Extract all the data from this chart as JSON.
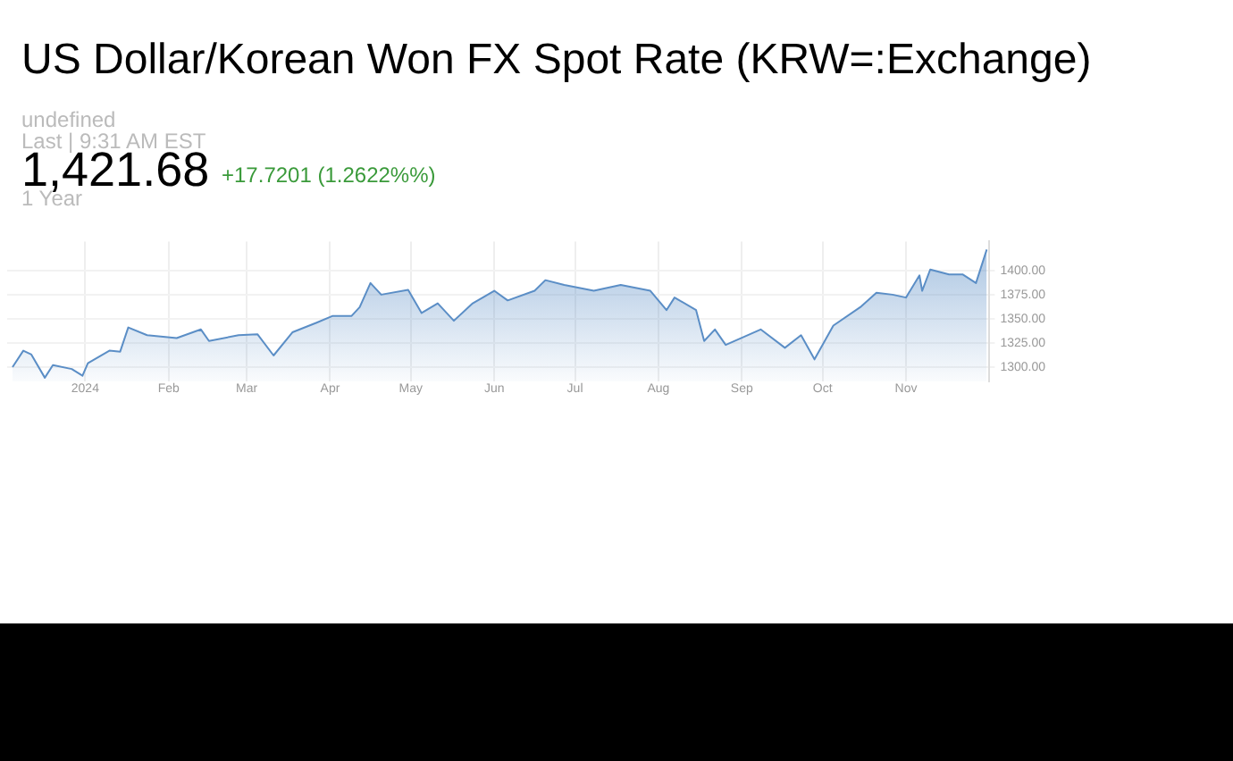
{
  "chart_data": {
    "type": "area",
    "title": "US Dollar/Korean Won FX Spot Rate (KRW=:Exchange)",
    "annotations": [
      "undefined",
      "Last | 9:31 AM EST",
      "1,421.68",
      "+17.7201 (1.2622%%)",
      "1 Year"
    ],
    "x": [
      "2023-12-05",
      "2023-12-09",
      "2023-12-12",
      "2023-12-17",
      "2023-12-20",
      "2023-12-27",
      "2023-12-31",
      "2024-01-02",
      "2024-01-10",
      "2024-01-14",
      "2024-01-17",
      "2024-01-24",
      "2024-02-04",
      "2024-02-13",
      "2024-02-16",
      "2024-02-27",
      "2024-03-05",
      "2024-03-11",
      "2024-03-18",
      "2024-03-27",
      "2024-04-02",
      "2024-04-09",
      "2024-04-12",
      "2024-04-16",
      "2024-04-20",
      "2024-04-30",
      "2024-05-05",
      "2024-05-11",
      "2024-05-17",
      "2024-05-24",
      "2024-06-01",
      "2024-06-06",
      "2024-06-16",
      "2024-06-20",
      "2024-06-27",
      "2024-07-08",
      "2024-07-18",
      "2024-07-29",
      "2024-08-04",
      "2024-08-07",
      "2024-08-15",
      "2024-08-18",
      "2024-08-22",
      "2024-08-26",
      "2024-09-08",
      "2024-09-17",
      "2024-09-23",
      "2024-09-28",
      "2024-10-05",
      "2024-10-15",
      "2024-10-21",
      "2024-10-27",
      "2024-11-01",
      "2024-11-06",
      "2024-11-07",
      "2024-11-10",
      "2024-11-17",
      "2024-11-22",
      "2024-11-27",
      "2024-12-01"
    ],
    "series": [
      {
        "color": "#5b8ec6",
        "values": [
          1300,
          1317,
          1313,
          1289,
          1302,
          1298,
          1291,
          1304,
          1317,
          1316,
          1341,
          1333,
          1330,
          1339,
          1327,
          1333,
          1334,
          1312,
          1336,
          1346,
          1353,
          1353,
          1362,
          1387,
          1375,
          1380,
          1356,
          1366,
          1348,
          1366,
          1379,
          1369,
          1379,
          1390,
          1385,
          1379,
          1385,
          1379,
          1359,
          1372,
          1359,
          1327,
          1339,
          1323,
          1339,
          1320,
          1333,
          1308,
          1343,
          1362,
          1377,
          1375,
          1372,
          1395,
          1379,
          1401,
          1396,
          1396,
          1387,
          1421.68
        ]
      }
    ],
    "xlim": [
      "2023-12-03",
      "2024-12-02"
    ],
    "xticks": [
      {
        "value": "2024-01-01",
        "label": "2024"
      },
      {
        "value": "2024-02-01",
        "label": "Feb"
      },
      {
        "value": "2024-03-01",
        "label": "Mar"
      },
      {
        "value": "2024-04-01",
        "label": "Apr"
      },
      {
        "value": "2024-05-01",
        "label": "May"
      },
      {
        "value": "2024-06-01",
        "label": "Jun"
      },
      {
        "value": "2024-07-01",
        "label": "Jul"
      },
      {
        "value": "2024-08-01",
        "label": "Aug"
      },
      {
        "value": "2024-09-01",
        "label": "Sep"
      },
      {
        "value": "2024-10-01",
        "label": "Oct"
      },
      {
        "value": "2024-11-01",
        "label": "Nov"
      }
    ],
    "ylim": [
      1285,
      1430
    ],
    "yticks": [
      {
        "value": 1300,
        "label": "1300.00"
      },
      {
        "value": 1325,
        "label": "1325.00"
      },
      {
        "value": 1350,
        "label": "1350.00"
      },
      {
        "value": 1375,
        "label": "1375.00"
      },
      {
        "value": 1400,
        "label": "1400.00"
      }
    ],
    "grid": true,
    "legend": false
  }
}
